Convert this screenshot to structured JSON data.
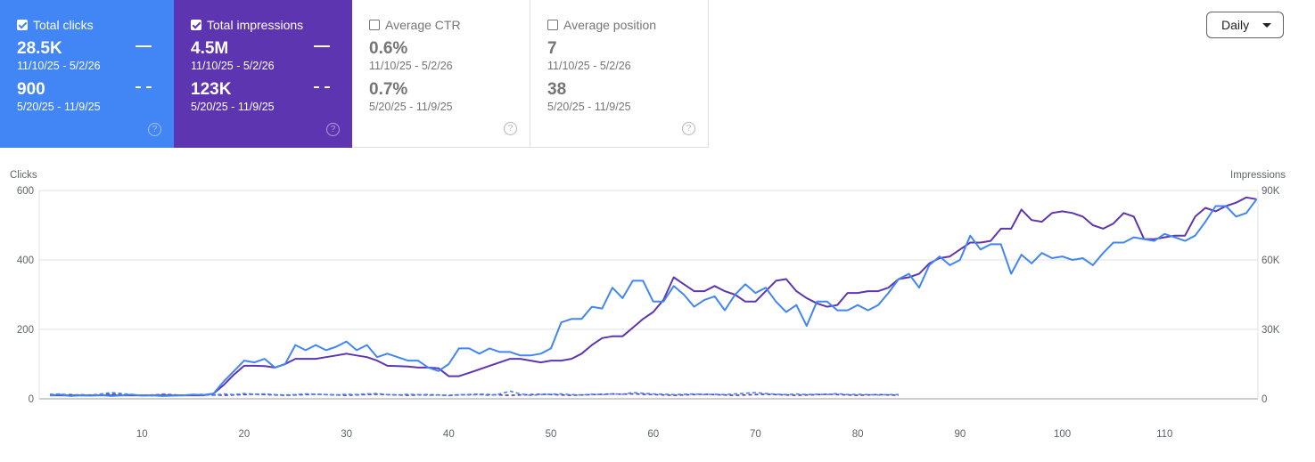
{
  "cards": [
    {
      "label": "Total clicks",
      "checked": true,
      "value1": "28.5K",
      "range1": "11/10/25 - 5/2/26",
      "value2": "900",
      "range2": "5/20/25 - 11/9/25"
    },
    {
      "label": "Total impressions",
      "checked": true,
      "value1": "4.5M",
      "range1": "11/10/25 - 5/2/26",
      "value2": "123K",
      "range2": "5/20/25 - 11/9/25"
    },
    {
      "label": "Average CTR",
      "checked": false,
      "value1": "0.6%",
      "range1": "11/10/25 - 5/2/26",
      "value2": "0.7%",
      "range2": "5/20/25 - 11/9/25"
    },
    {
      "label": "Average position",
      "checked": false,
      "value1": "7",
      "range1": "11/10/25 - 5/2/26",
      "value2": "38",
      "range2": "5/20/25 - 11/9/25"
    }
  ],
  "help_glyph": "?",
  "granularity": {
    "label": "Daily"
  },
  "colors": {
    "clicks": "#4285f4",
    "impressions": "#5e35b1",
    "grid": "#e0e0e0"
  },
  "chart_data": {
    "type": "line",
    "left_axis_title": "Clicks",
    "right_axis_title": "Impressions",
    "left_ticks": [
      "600",
      "400",
      "200",
      "0"
    ],
    "right_ticks": [
      "90K",
      "60K",
      "30K",
      "0"
    ],
    "x_ticks": [
      "10",
      "20",
      "30",
      "40",
      "50",
      "60",
      "70",
      "80",
      "90",
      "100",
      "110"
    ],
    "ylim_left": [
      0,
      600
    ],
    "ylim_right": [
      0,
      90000
    ],
    "x_range": [
      1,
      119
    ],
    "series": [
      {
        "name": "Total clicks",
        "period": "current",
        "axis": "left",
        "color": "#4285f4",
        "values": [
          10,
          12,
          8,
          10,
          9,
          11,
          8,
          10,
          12,
          9,
          10,
          8,
          9,
          10,
          12,
          11,
          15,
          50,
          80,
          110,
          105,
          115,
          90,
          100,
          155,
          140,
          155,
          140,
          150,
          165,
          140,
          155,
          120,
          130,
          120,
          110,
          110,
          90,
          80,
          100,
          145,
          145,
          130,
          145,
          135,
          135,
          125,
          125,
          130,
          145,
          220,
          230,
          230,
          265,
          260,
          320,
          290,
          340,
          340,
          280,
          280,
          325,
          300,
          265,
          285,
          295,
          255,
          300,
          330,
          305,
          320,
          280,
          250,
          270,
          210,
          280,
          280,
          255,
          255,
          270,
          255,
          270,
          305,
          345,
          360,
          320,
          385,
          410,
          385,
          400,
          470,
          430,
          445,
          445,
          360,
          415,
          390,
          420,
          405,
          410,
          400,
          405,
          385,
          420,
          450,
          450,
          465,
          460,
          455,
          475,
          465,
          455,
          470,
          510,
          555,
          555,
          525,
          535,
          575
        ]
      },
      {
        "name": "Total impressions",
        "period": "current",
        "axis": "right",
        "color": "#5e35b1",
        "values": [
          1500,
          1500,
          1500,
          1500,
          1500,
          1500,
          1500,
          1500,
          1500,
          1500,
          1500,
          1500,
          1500,
          1500,
          1500,
          1500,
          2250,
          6000,
          10500,
          14250,
          14250,
          14100,
          13500,
          15000,
          17250,
          17250,
          17250,
          18000,
          18750,
          19500,
          18750,
          18000,
          16500,
          14250,
          14100,
          13950,
          13500,
          13500,
          13200,
          9750,
          9750,
          11250,
          12750,
          14250,
          15750,
          17250,
          17250,
          16500,
          15750,
          16500,
          16500,
          17250,
          19500,
          23250,
          26250,
          27000,
          27000,
          30750,
          34500,
          37500,
          42750,
          52500,
          49500,
          46500,
          46500,
          48750,
          46500,
          45000,
          42000,
          42000,
          46500,
          51000,
          51750,
          46500,
          43500,
          41250,
          39750,
          40500,
          45750,
          45750,
          46500,
          46500,
          48000,
          51750,
          52500,
          54000,
          58500,
          60750,
          61500,
          64500,
          67500,
          67500,
          68250,
          73500,
          73500,
          81750,
          77250,
          76500,
          80250,
          81000,
          80250,
          78750,
          75000,
          73500,
          75750,
          80250,
          78750,
          69000,
          69000,
          69750,
          70500,
          70500,
          78750,
          82500,
          81000,
          83250,
          84750,
          87000,
          86250
        ]
      },
      {
        "name": "Total clicks",
        "period": "previous",
        "axis": "left",
        "color": "#4285f4",
        "dash": true,
        "values": [
          12,
          14,
          10,
          12,
          10,
          14,
          18,
          15,
          12,
          10,
          9,
          14,
          12,
          10,
          11,
          13,
          10,
          14,
          12,
          15,
          13,
          14,
          12,
          11,
          12,
          14,
          13,
          12,
          11,
          13,
          12,
          14,
          15,
          12,
          11,
          13,
          12,
          10,
          11,
          9,
          12,
          11,
          12,
          10,
          14,
          22,
          14,
          10,
          12,
          13,
          14,
          12,
          11,
          13,
          12,
          14,
          13,
          18,
          16,
          14,
          13,
          12,
          13,
          14,
          12,
          13,
          12,
          14,
          16,
          18,
          15,
          13,
          12,
          14,
          12,
          13,
          12,
          15,
          12,
          13,
          12,
          11,
          12,
          12
        ]
      },
      {
        "name": "Total impressions",
        "period": "previous",
        "axis": "right",
        "color": "#5e35b1",
        "dash": true,
        "values": [
          1950,
          1650,
          1800,
          1500,
          1650,
          1800,
          1950,
          1800,
          1650,
          1500,
          1650,
          1800,
          1650,
          1500,
          1650,
          1800,
          1650,
          1500,
          1650,
          1800,
          1950,
          1800,
          1650,
          1500,
          1650,
          1800,
          1950,
          1800,
          1650,
          1500,
          1650,
          1800,
          1950,
          1800,
          1650,
          1500,
          1650,
          1800,
          1650,
          1500,
          1650,
          1800,
          1950,
          1800,
          1650,
          1500,
          1650,
          1800,
          1950,
          1800,
          1650,
          1500,
          1650,
          1800,
          1950,
          2100,
          1950,
          2100,
          1950,
          1800,
          1650,
          1500,
          1650,
          1800,
          1950,
          1800,
          1650,
          1500,
          1650,
          1800,
          1950,
          1800,
          1650,
          1500,
          1650,
          1800,
          1950,
          1800,
          1650,
          1500,
          1650,
          1800,
          1650,
          1500
        ]
      }
    ]
  }
}
